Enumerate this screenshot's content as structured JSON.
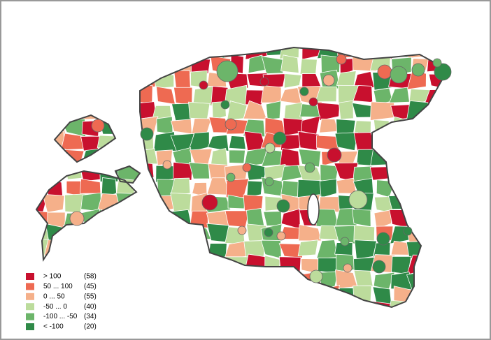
{
  "legend": {
    "items": [
      {
        "label": "> 100",
        "count_label": "(58)",
        "color": "#c8102e"
      },
      {
        "label": "50 ... 100",
        "count_label": "(45)",
        "color": "#ee6a52"
      },
      {
        "label": "0 ... 50",
        "count_label": "(55)",
        "color": "#f5b08a"
      },
      {
        "label": "-50 ... 0",
        "count_label": "(40)",
        "color": "#bcdc9c"
      },
      {
        "label": "-100 ... -50",
        "count_label": "(34)",
        "color": "#6cb56a"
      },
      {
        "label": "< -100",
        "count_label": "(20)",
        "color": "#2f8a48"
      }
    ]
  }
}
